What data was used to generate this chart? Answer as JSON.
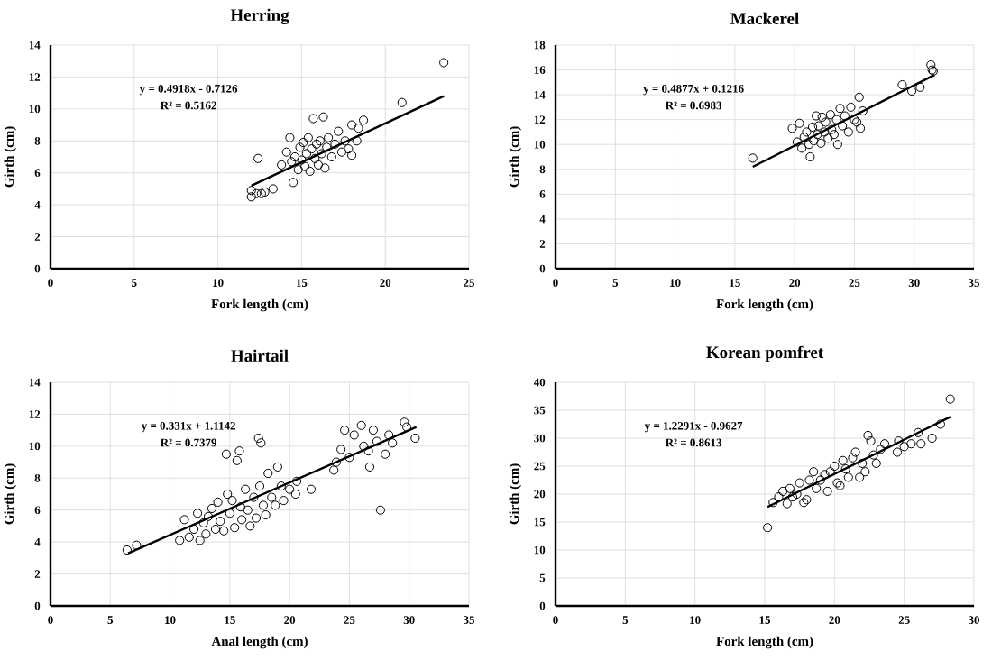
{
  "chart_data": [
    {
      "type": "scatter",
      "title": "Herring",
      "xlabel": "Fork length (cm)",
      "ylabel": "Girth (cm)",
      "xlim": [
        0,
        25
      ],
      "ylim": [
        0,
        14
      ],
      "xticks": [
        0,
        5,
        10,
        15,
        20,
        25
      ],
      "yticks": [
        0,
        2,
        4,
        6,
        8,
        10,
        12,
        14
      ],
      "grid": true,
      "annotations": [
        "y = 0.4918x - 0.7126",
        "R² = 0.5162"
      ],
      "series": [
        {
          "marker": "circle",
          "color": "#000000",
          "x": [
            12,
            12,
            12.3,
            12.4,
            12.6,
            12.8,
            13.3,
            13.8,
            14.1,
            14.3,
            14.4,
            14.5,
            14.6,
            14.8,
            14.9,
            15.0,
            15.1,
            15.2,
            15.3,
            15.4,
            15.5,
            15.6,
            15.7,
            15.8,
            15.9,
            16.0,
            16.1,
            16.2,
            16.3,
            16.4,
            16.5,
            16.6,
            16.8,
            17.0,
            17.2,
            17.4,
            17.6,
            17.8,
            18.0,
            18.0,
            18.3,
            18.4,
            18.7,
            21,
            23.5
          ],
          "values": [
            4.5,
            4.9,
            4.7,
            6.9,
            4.7,
            4.8,
            5.0,
            6.5,
            7.3,
            8.2,
            6.7,
            5.4,
            7.0,
            6.2,
            7.6,
            6.8,
            7.9,
            6.4,
            7.2,
            8.2,
            6.1,
            7.5,
            9.4,
            6.9,
            7.8,
            6.5,
            8.0,
            7.2,
            9.5,
            6.3,
            7.6,
            8.2,
            7.0,
            7.8,
            8.6,
            7.3,
            8.0,
            7.5,
            9.0,
            7.1,
            8.0,
            8.8,
            9.3,
            10.4,
            12.9
          ]
        },
        {
          "type": "line",
          "color": "#000000",
          "x": [
            12,
            23.5
          ],
          "values": [
            5.2,
            10.8
          ]
        }
      ]
    },
    {
      "type": "scatter",
      "title": "Mackerel",
      "xlabel": "Fork length (cm)",
      "ylabel": "Girth (cm)",
      "xlim": [
        0,
        35
      ],
      "ylim": [
        0,
        18
      ],
      "xticks": [
        0,
        5,
        10,
        15,
        20,
        25,
        30,
        35
      ],
      "yticks": [
        0,
        2,
        4,
        6,
        8,
        10,
        12,
        14,
        16,
        18
      ],
      "grid": true,
      "annotations": [
        "y = 0.4877x + 0.1216",
        "R² = 0.6983"
      ],
      "series": [
        {
          "marker": "circle",
          "color": "#000000",
          "x": [
            16.5,
            19.8,
            20.2,
            20.4,
            20.6,
            20.8,
            21.0,
            21.2,
            21.3,
            21.5,
            21.6,
            21.8,
            21.9,
            22.0,
            22.2,
            22.3,
            22.5,
            22.6,
            22.8,
            23.0,
            23.1,
            23.3,
            23.5,
            23.6,
            23.8,
            24.0,
            24.2,
            24.5,
            24.7,
            25.0,
            25.2,
            25.4,
            25.5,
            25.7,
            29.0,
            29.8,
            30.5,
            31.4,
            31.5,
            31.6
          ],
          "values": [
            8.9,
            11.3,
            10.2,
            11.7,
            9.7,
            10.6,
            11.0,
            10.0,
            9.0,
            11.4,
            10.3,
            12.3,
            10.8,
            11.5,
            10.1,
            12.2,
            11.0,
            11.8,
            10.5,
            12.4,
            11.2,
            10.8,
            12.0,
            10.0,
            12.9,
            11.5,
            12.3,
            11.0,
            13.0,
            12.0,
            11.8,
            13.8,
            11.3,
            12.7,
            14.8,
            14.3,
            14.6,
            16.4,
            16.0,
            15.9
          ]
        },
        {
          "type": "line",
          "color": "#000000",
          "x": [
            16.5,
            31.7
          ],
          "values": [
            8.2,
            15.6
          ]
        }
      ]
    },
    {
      "type": "scatter",
      "title": "Hairtail",
      "xlabel": "Anal length (cm)",
      "ylabel": "Girth (cm)",
      "xlim": [
        0,
        35
      ],
      "ylim": [
        0,
        14
      ],
      "xticks": [
        0,
        5,
        10,
        15,
        20,
        25,
        30,
        35
      ],
      "yticks": [
        0,
        2,
        4,
        6,
        8,
        10,
        12,
        14
      ],
      "grid": true,
      "annotations": [
        "y = 0.331x + 1.1142",
        "R² = 0.7379"
      ],
      "series": [
        {
          "marker": "circle",
          "color": "#000000",
          "x": [
            6.4,
            7.2,
            10.8,
            11.2,
            11.6,
            12.0,
            12.3,
            12.5,
            12.8,
            13.0,
            13.2,
            13.5,
            13.8,
            14.0,
            14.2,
            14.5,
            14.7,
            14.8,
            15.0,
            15.2,
            15.4,
            15.6,
            15.8,
            15.9,
            16.0,
            16.3,
            16.5,
            16.7,
            17.0,
            17.2,
            17.4,
            17.6,
            17.5,
            17.8,
            18.0,
            18.2,
            18.5,
            18.8,
            19.0,
            19.3,
            19.5,
            20.0,
            20.5,
            20.6,
            21.8,
            23.7,
            23.9,
            24.3,
            24.6,
            25.0,
            25.4,
            26.0,
            26.2,
            26.6,
            26.7,
            27.0,
            27.3,
            27.6,
            28.0,
            28.3,
            28.6,
            29.6,
            29.8,
            30.5
          ],
          "values": [
            3.5,
            3.8,
            4.1,
            5.4,
            4.3,
            4.8,
            5.8,
            4.1,
            5.2,
            4.5,
            5.6,
            6.1,
            4.8,
            6.5,
            5.3,
            4.7,
            9.5,
            7.0,
            5.8,
            6.6,
            4.9,
            9.1,
            9.7,
            6.2,
            5.4,
            7.3,
            6.0,
            5.0,
            6.8,
            5.5,
            10.5,
            10.2,
            7.5,
            6.3,
            5.7,
            8.3,
            6.8,
            6.3,
            8.7,
            7.5,
            6.6,
            7.3,
            7.0,
            7.8,
            7.3,
            8.5,
            9.0,
            9.8,
            11.0,
            9.3,
            10.7,
            11.3,
            10.0,
            9.7,
            8.7,
            11.0,
            10.3,
            6.0,
            9.5,
            10.7,
            10.2,
            11.5,
            11.2,
            10.5
          ]
        },
        {
          "type": "line",
          "color": "#000000",
          "x": [
            6.5,
            30.6
          ],
          "values": [
            3.3,
            11.2
          ]
        }
      ]
    },
    {
      "type": "scatter",
      "title": "Korean pomfret",
      "xlabel": "Fork length (cm)",
      "ylabel": "Girth (cm)",
      "xlim": [
        0,
        30
      ],
      "ylim": [
        0,
        40
      ],
      "xticks": [
        0,
        5,
        10,
        15,
        20,
        25,
        30
      ],
      "yticks": [
        0,
        5,
        10,
        15,
        20,
        25,
        30,
        35,
        40
      ],
      "grid": true,
      "annotations": [
        "y = 1.2291x - 0.9627",
        "R² = 0.8613"
      ],
      "series": [
        {
          "marker": "circle",
          "color": "#000000",
          "x": [
            15.2,
            15.6,
            16.0,
            16.3,
            16.6,
            16.8,
            17.0,
            17.3,
            17.5,
            17.8,
            18.0,
            18.2,
            18.5,
            18.7,
            19.0,
            19.3,
            19.5,
            19.7,
            20.0,
            20.2,
            20.4,
            20.6,
            20.8,
            21.0,
            21.3,
            21.5,
            21.8,
            22.0,
            22.2,
            22.4,
            22.6,
            22.8,
            23.0,
            23.3,
            23.6,
            24.5,
            24.6,
            25.0,
            25.5,
            26.0,
            26.2,
            27.0,
            27.6,
            28.3
          ],
          "values": [
            14.0,
            18.5,
            19.5,
            20.5,
            18.3,
            21.0,
            19.5,
            20.0,
            22.0,
            18.5,
            19.0,
            22.5,
            24.0,
            21.0,
            22.5,
            23.5,
            20.5,
            24.0,
            25.0,
            22.0,
            21.5,
            26.0,
            24.5,
            23.0,
            26.5,
            27.5,
            23.0,
            25.5,
            24.0,
            30.5,
            29.5,
            27.0,
            25.5,
            28.0,
            29.0,
            27.5,
            29.5,
            28.5,
            29.0,
            31.0,
            29.0,
            30.0,
            32.5,
            37.0
          ]
        },
        {
          "type": "line",
          "color": "#000000",
          "x": [
            15.2,
            28.3
          ],
          "values": [
            17.7,
            33.8
          ]
        }
      ]
    }
  ]
}
